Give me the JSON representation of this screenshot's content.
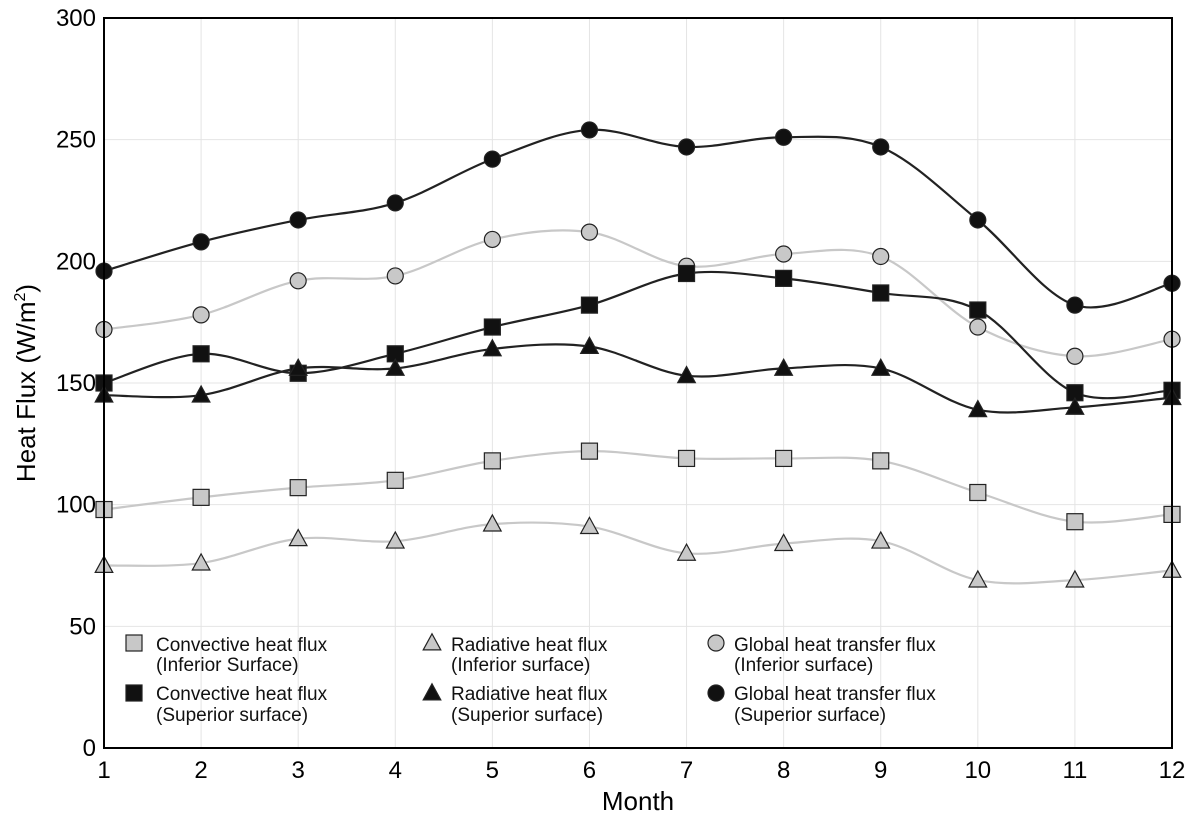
{
  "chart_data": {
    "type": "line",
    "title": "",
    "xlabel": "Month",
    "ylabel": "Heat Flux (W/m²)",
    "ylabel_main": "Heat Flux (W/m",
    "ylabel_sup": "2",
    "ylabel_end": ")",
    "xlim": [
      1,
      12
    ],
    "ylim": [
      0,
      300
    ],
    "yticks": [
      "0",
      "50",
      "100",
      "150",
      "200",
      "250",
      "300"
    ],
    "x": [
      1,
      2,
      3,
      4,
      5,
      6,
      7,
      8,
      9,
      10,
      11,
      12
    ],
    "xticks": [
      "1",
      "2",
      "3",
      "4",
      "5",
      "6",
      "7",
      "8",
      "9",
      "10",
      "11",
      "12"
    ],
    "grid": true,
    "legend_position": "bottom-left",
    "series": [
      {
        "name": "Convective heat flux (Inferior Surface)",
        "legend_line1": "Convective heat flux",
        "legend_line2": "(Inferior Surface)",
        "marker": "square",
        "marker_color": "#c8c8c8",
        "line_color": "#c8c8c8",
        "values": [
          98,
          103,
          107,
          110,
          118,
          122,
          119,
          119,
          118,
          105,
          93,
          96
        ]
      },
      {
        "name": "Convective heat flux (Superior surface)",
        "legend_line1": "Convective heat flux",
        "legend_line2": "(Superior surface)",
        "marker": "square",
        "marker_color": "#111111",
        "line_color": "#222222",
        "values": [
          150,
          162,
          154,
          162,
          173,
          182,
          195,
          193,
          187,
          180,
          146,
          147
        ]
      },
      {
        "name": "Radiative heat flux (Inferior surface)",
        "legend_line1": "Radiative heat flux",
        "legend_line2": "(Inferior surface)",
        "marker": "triangle",
        "marker_color": "#c8c8c8",
        "line_color": "#c8c8c8",
        "values": [
          75,
          76,
          86,
          85,
          92,
          91,
          80,
          84,
          85,
          69,
          69,
          73
        ]
      },
      {
        "name": "Radiative heat flux (Superior surface)",
        "legend_line1": "Radiative heat flux",
        "legend_line2": "(Superior surface)",
        "marker": "triangle",
        "marker_color": "#111111",
        "line_color": "#222222",
        "values": [
          145,
          145,
          156,
          156,
          164,
          165,
          153,
          156,
          156,
          139,
          140,
          144
        ]
      },
      {
        "name": "Global heat transfer flux (Inferior surface)",
        "legend_line1": "Global heat transfer flux",
        "legend_line2": "(Inferior surface)",
        "marker": "circle",
        "marker_color": "#c8c8c8",
        "line_color": "#c8c8c8",
        "values": [
          172,
          178,
          192,
          194,
          209,
          212,
          198,
          203,
          202,
          173,
          161,
          168
        ]
      },
      {
        "name": "Global heat transfer flux (Superior surface)",
        "legend_line1": "Global heat transfer flux",
        "legend_line2": "(Superior surface)",
        "marker": "circle",
        "marker_color": "#111111",
        "line_color": "#222222",
        "values": [
          196,
          208,
          217,
          224,
          242,
          254,
          247,
          251,
          247,
          217,
          182,
          191
        ]
      }
    ]
  }
}
